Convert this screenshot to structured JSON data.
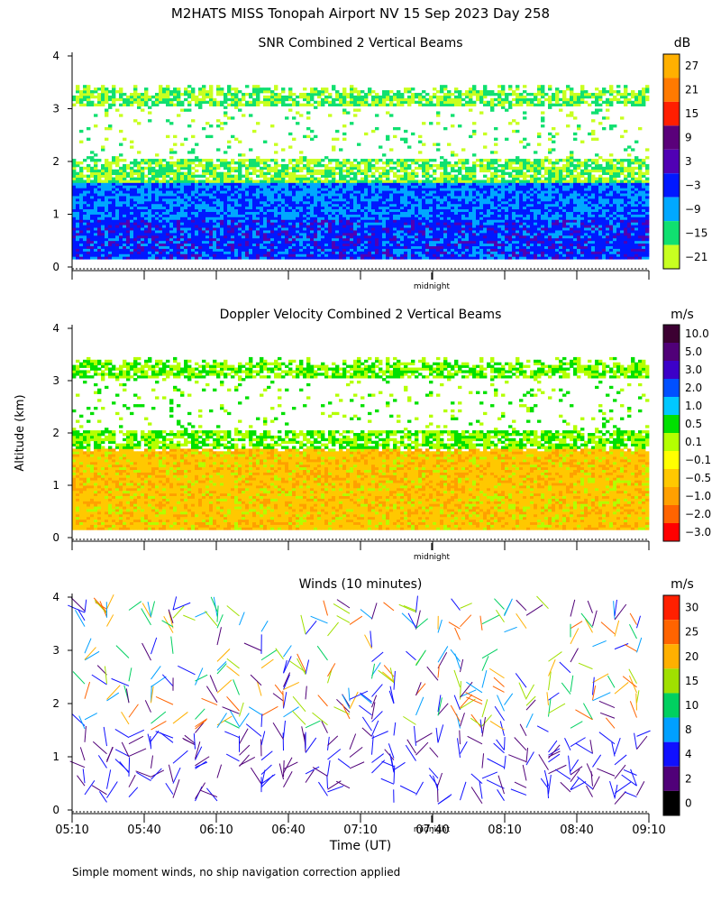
{
  "title": "M2HATS MISS Tonopah Airport NV  15 Sep 2023 Day 258",
  "ylabel": "Altitude (km)",
  "footnote": "Simple moment winds, no ship navigation correction applied",
  "midnight_label": "midnight",
  "chart_data": [
    {
      "type": "heatmap",
      "title": "SNR Combined 2 Vertical Beams",
      "units": "dB",
      "ylim": [
        0,
        4
      ],
      "y_ticks": [
        "0",
        "1",
        "2",
        "3",
        "4"
      ],
      "colorbar": {
        "labels": [
          "27",
          "21",
          "15",
          "9",
          "3",
          "−3",
          "−9",
          "−15",
          "−21"
        ],
        "colors": [
          "#ffb000",
          "#ff7a00",
          "#ff1e00",
          "#5a007a",
          "#5000b4",
          "#0018ff",
          "#00a8ff",
          "#10e070",
          "#c8ff20"
        ]
      },
      "layers": [
        {
          "altitude_km": [
            0.15,
            0.9
          ],
          "description": "strong return",
          "level_dB": -3
        },
        {
          "altitude_km": [
            0.9,
            1.6
          ],
          "description": "moderate",
          "level_dB": -9
        },
        {
          "altitude_km": [
            1.6,
            2.0
          ],
          "description": "weak",
          "level_dB": -15
        },
        {
          "altitude_km": [
            3.1,
            3.35
          ],
          "description": "elevated layer",
          "level_dB": -15
        }
      ]
    },
    {
      "type": "heatmap",
      "title": "Doppler Velocity Combined 2 Vertical Beams",
      "units": "m/s",
      "ylim": [
        0,
        4
      ],
      "y_ticks": [
        "0",
        "1",
        "2",
        "3",
        "4"
      ],
      "colorbar": {
        "labels": [
          "10.0",
          "5.0",
          "3.0",
          "2.0",
          "1.0",
          "0.5",
          "0.1",
          "−0.1",
          "−0.5",
          "−1.0",
          "−2.0",
          "−3.0"
        ],
        "colors": [
          "#3c0032",
          "#500078",
          "#3c00c8",
          "#0050ff",
          "#00c8ff",
          "#00e000",
          "#b4ff00",
          "#ffff00",
          "#ffc800",
          "#ffa000",
          "#ff6400",
          "#ff0000"
        ]
      }
    },
    {
      "type": "wind_barbs",
      "title": "Winds (10 minutes)",
      "units": "m/s",
      "ylim": [
        0,
        4
      ],
      "y_ticks": [
        "0",
        "1",
        "2",
        "3",
        "4"
      ],
      "colorbar": {
        "labels": [
          "30",
          "25",
          "20",
          "15",
          "10",
          "8",
          "4",
          "2",
          "0"
        ],
        "colors": [
          "#ff2000",
          "#ff6400",
          "#ffb000",
          "#a0e000",
          "#00d060",
          "#00a0ff",
          "#1010ff",
          "#500078",
          "#000000"
        ]
      }
    }
  ],
  "x_ticks": [
    "05:10",
    "05:40",
    "06:10",
    "06:40",
    "07:10",
    "07:40",
    "08:10",
    "08:40",
    "09:10"
  ],
  "xlabel": "Time (UT)",
  "x_range_hours_ut": [
    5.1667,
    9.1667
  ],
  "midnight_hour_ut": 7.0
}
